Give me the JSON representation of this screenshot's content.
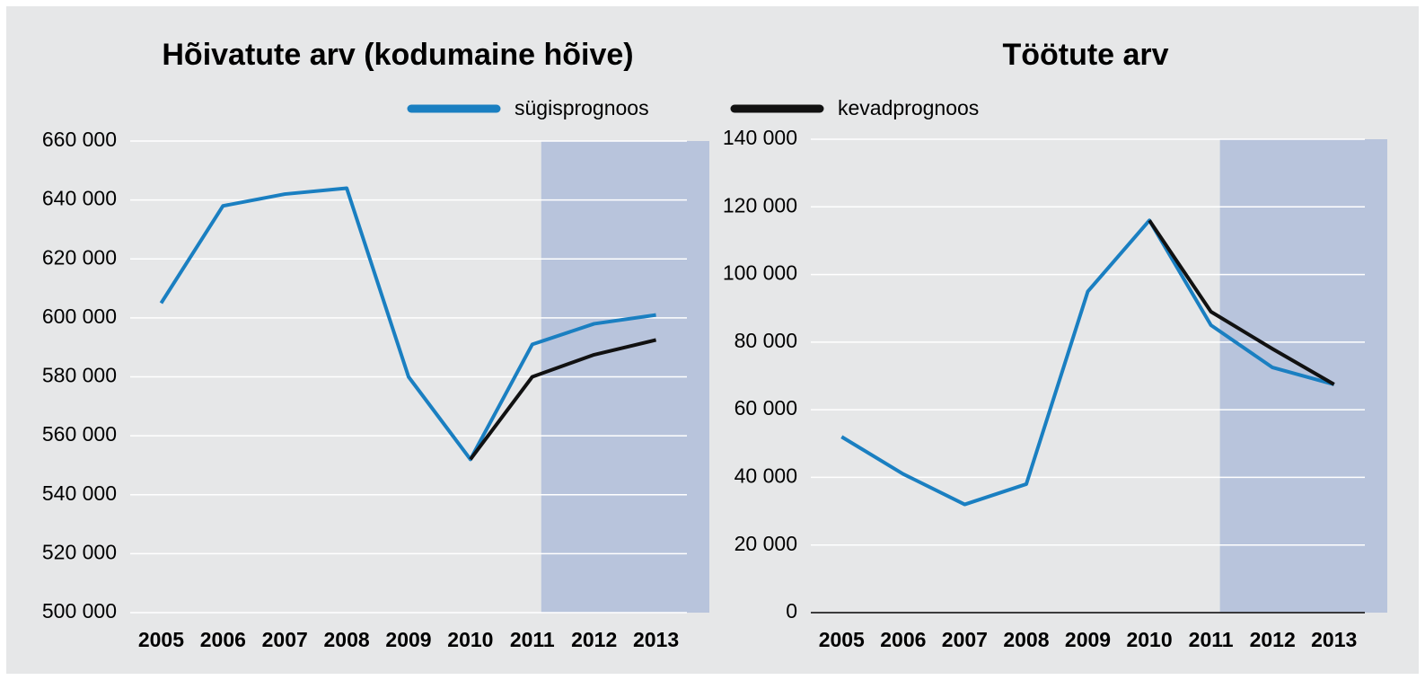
{
  "legend": [
    {
      "name": "sügisprognoos",
      "color": "#1a7fc1"
    },
    {
      "name": "kevadprognoos",
      "color": "#111111"
    }
  ],
  "chart_data": [
    {
      "type": "line",
      "title": "Hõivatute arv (kodumaine hõive)",
      "categories": [
        "2005",
        "2006",
        "2007",
        "2008",
        "2009",
        "2010",
        "2011",
        "2012",
        "2013"
      ],
      "series": [
        {
          "color": "#1a7fc1",
          "values": [
            605000,
            638000,
            642000,
            644000,
            580000,
            552000,
            591000,
            598000,
            601000
          ]
        },
        {
          "color": "#111111",
          "values": [
            null,
            null,
            null,
            null,
            null,
            552000,
            580000,
            587500,
            592500
          ]
        }
      ],
      "ylim": [
        500000,
        660000
      ],
      "yticks": [
        {
          "value": 500000,
          "label": "500 000"
        },
        {
          "value": 520000,
          "label": "520 000"
        },
        {
          "value": 540000,
          "label": "540 000"
        },
        {
          "value": 560000,
          "label": "560 000"
        },
        {
          "value": 580000,
          "label": "580 000"
        },
        {
          "value": 600000,
          "label": "600 000"
        },
        {
          "value": 620000,
          "label": "620 000"
        },
        {
          "value": 640000,
          "label": "640 000"
        },
        {
          "value": 660000,
          "label": "660 000"
        }
      ],
      "grid": true,
      "highlight": {
        "from": "2011",
        "color": "#b8c4dc"
      }
    },
    {
      "type": "line",
      "title": "Töötute arv",
      "categories": [
        "2005",
        "2006",
        "2007",
        "2008",
        "2009",
        "2010",
        "2011",
        "2012",
        "2013"
      ],
      "series": [
        {
          "color": "#1a7fc1",
          "values": [
            52000,
            41000,
            32000,
            38000,
            95000,
            116000,
            85000,
            72500,
            67500
          ]
        },
        {
          "color": "#111111",
          "values": [
            null,
            null,
            null,
            null,
            null,
            116000,
            89000,
            78000,
            67500
          ]
        }
      ],
      "ylim": [
        0,
        140000
      ],
      "yticks": [
        0,
        {
          "value": 20000,
          "label": "20 000"
        },
        {
          "value": 40000,
          "label": "40 000"
        },
        {
          "value": 60000,
          "label": "60 000"
        },
        {
          "value": 80000,
          "label": "80 000"
        },
        {
          "value": 100000,
          "label": "100 000"
        },
        {
          "value": 120000,
          "label": "120 000"
        },
        {
          "value": 140000,
          "label": "140 000"
        }
      ],
      "grid": true,
      "highlight": {
        "from": "2011",
        "color": "#b8c4dc"
      }
    }
  ]
}
